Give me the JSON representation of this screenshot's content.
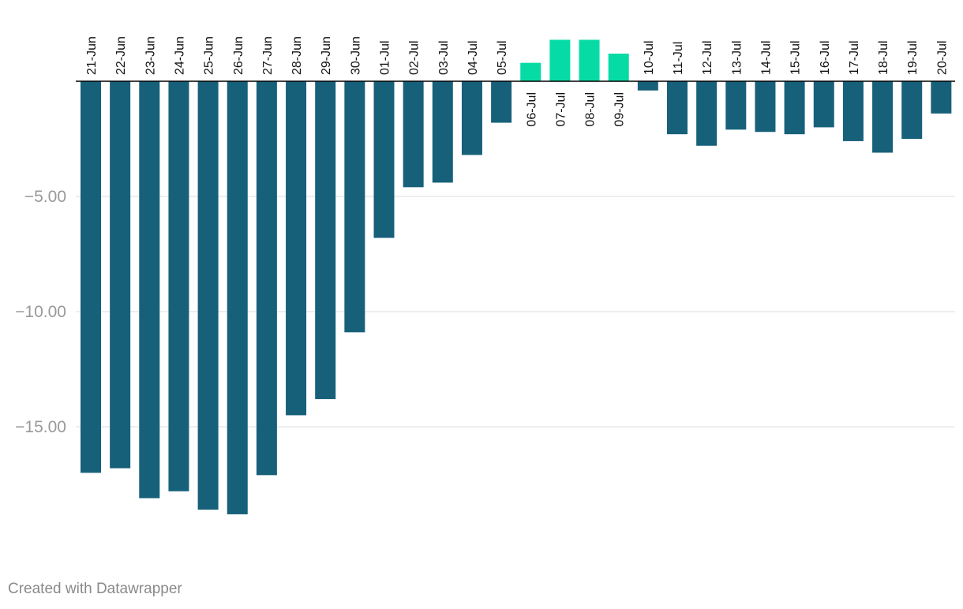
{
  "chart_data": {
    "type": "bar",
    "title": "",
    "xlabel": "",
    "ylabel": "",
    "categories": [
      "21-Jun",
      "22-Jun",
      "23-Jun",
      "24-Jun",
      "25-Jun",
      "26-Jun",
      "27-Jun",
      "28-Jun",
      "29-Jun",
      "30-Jun",
      "01-Jul",
      "02-Jul",
      "03-Jul",
      "04-Jul",
      "05-Jul",
      "06-Jul",
      "07-Jul",
      "08-Jul",
      "09-Jul",
      "10-Jul",
      "11-Jul",
      "12-Jul",
      "13-Jul",
      "14-Jul",
      "15-Jul",
      "16-Jul",
      "17-Jul",
      "18-Jul",
      "19-Jul",
      "20-Jul"
    ],
    "values": [
      -17.0,
      -16.8,
      -18.1,
      -17.8,
      -18.6,
      -18.8,
      -17.1,
      -14.5,
      -13.8,
      -10.9,
      -6.8,
      -4.6,
      -4.4,
      -3.2,
      -1.8,
      0.8,
      1.8,
      1.8,
      1.2,
      -0.4,
      -2.3,
      -2.8,
      -2.1,
      -2.2,
      -2.3,
      -2.0,
      -2.6,
      -3.1,
      -2.5,
      -1.4
    ],
    "ylim": [
      -20,
      2
    ],
    "yticks": [
      -5,
      -10,
      -15
    ],
    "ytick_labels": [
      "−5.00",
      "−10.00",
      "−15.00"
    ],
    "grid": true,
    "colors": {
      "negative": "#17607a",
      "positive": "#06dba6",
      "zero_line": "#000000",
      "gridline": "#dddddd",
      "tick_text": "#999999"
    }
  },
  "credit": "Created with Datawrapper"
}
